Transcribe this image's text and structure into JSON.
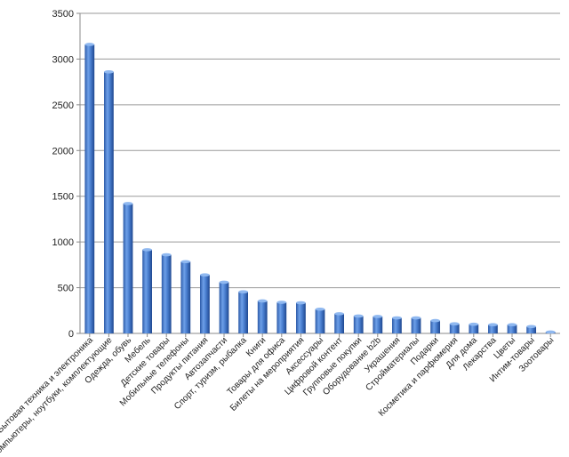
{
  "chart_data": {
    "type": "bar",
    "title": "",
    "xlabel": "",
    "ylabel": "",
    "ylim": [
      0,
      3500
    ],
    "yticks": [
      0,
      500,
      1000,
      1500,
      2000,
      2500,
      3000,
      3500
    ],
    "grid": true,
    "legend": "none",
    "bar_color": "#4a7fd0",
    "categories": [
      "Бытовая техника и электроника",
      "Компьютеры, ноутбуки, комплектующие",
      "Одежда, обувь",
      "Мебель",
      "Детские товары",
      "Мобильные телефоны",
      "Продукты питания",
      "Автозапчасти",
      "Спорт, туризм, рыбалка",
      "Книги",
      "Товары для офиса",
      "Билеты на мероприятия",
      "Аксессуары",
      "Цифровой контент",
      "Групповые покупки",
      "Оборудование b2b",
      "Украшения",
      "Стройматериалы",
      "Подарки",
      "Косметика и парфюмерия",
      "Для дома",
      "Лекарства",
      "Цветы",
      "Интим-товары",
      "Зоотовары"
    ],
    "values": [
      3160,
      2860,
      1420,
      915,
      860,
      785,
      640,
      560,
      455,
      355,
      340,
      335,
      265,
      215,
      190,
      185,
      170,
      170,
      140,
      105,
      100,
      95,
      95,
      75,
      15
    ]
  }
}
